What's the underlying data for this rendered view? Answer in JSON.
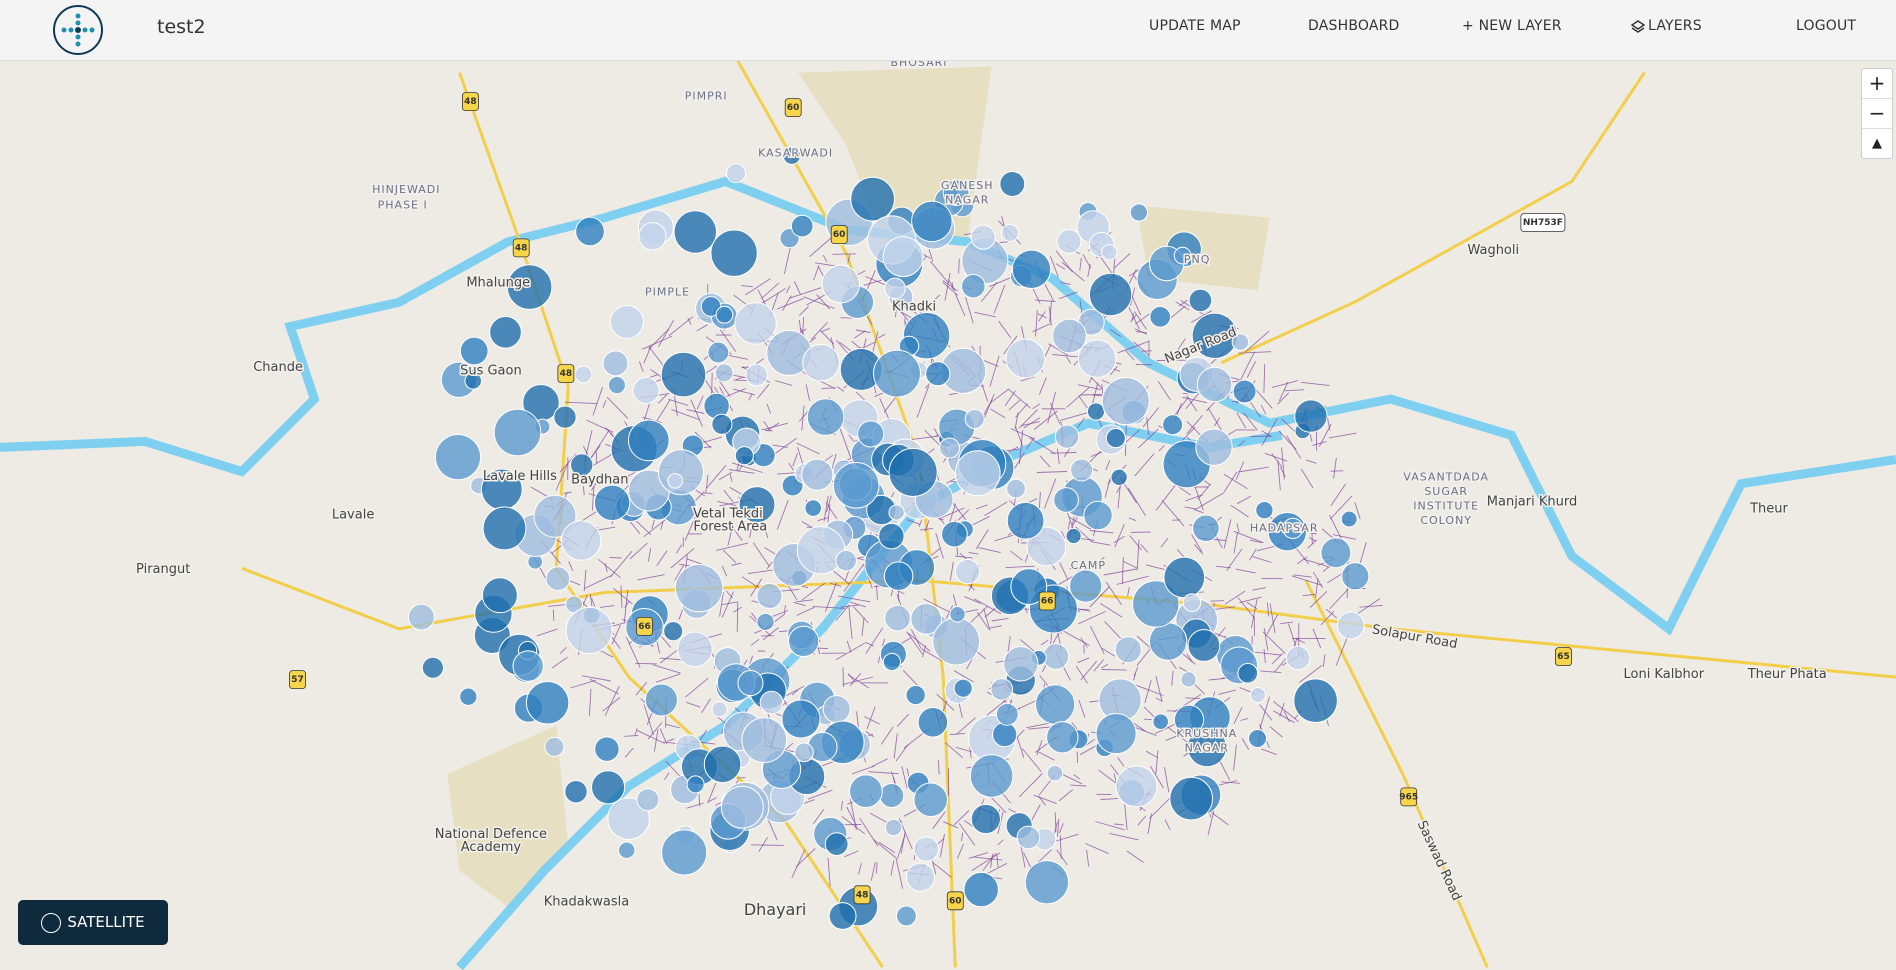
{
  "header": {
    "title": "test2",
    "nav": [
      "UPDATE MAP",
      "DASHBOARD",
      "+ NEW LAYER",
      "LAYERS",
      "LOGOUT"
    ]
  },
  "map": {
    "controls": {
      "zoom_in": "+",
      "zoom_out": "−"
    },
    "labels": [
      "BHOSARI",
      "PIMPRI",
      "KASARWADI",
      "HINJEWADI",
      "PHASE I",
      "Mhalunge",
      "GANESH",
      "NAGAR",
      "PNQ",
      "Wagholi",
      "Khadki",
      "PIMPLE",
      "Chande",
      "Sus Gaon",
      "Lavale Hills",
      "Baydhan",
      "Vetal Tekdi",
      "Forest Area",
      "Lavale",
      "Pirangut",
      "VASANTDADA",
      "SUGAR",
      "INSTITUTE",
      "COLONY",
      "Manjari Khurd",
      "Theur",
      "HADAPSAR",
      "CAMP",
      "KRUSHNA",
      "NAGAR",
      "Loni Kalbhor",
      "Theur Phata",
      "National Defence",
      "Academy",
      "Khadakwasla",
      "Dhayari",
      "Solapur Road",
      "Saswad Road",
      "Nagar Road"
    ],
    "road_shields": [
      "48",
      "48",
      "48",
      "48",
      "60",
      "60",
      "60",
      "65",
      "965",
      "57",
      "NH753F",
      "66",
      "66"
    ]
  },
  "satellite_button": "SATELLITE"
}
